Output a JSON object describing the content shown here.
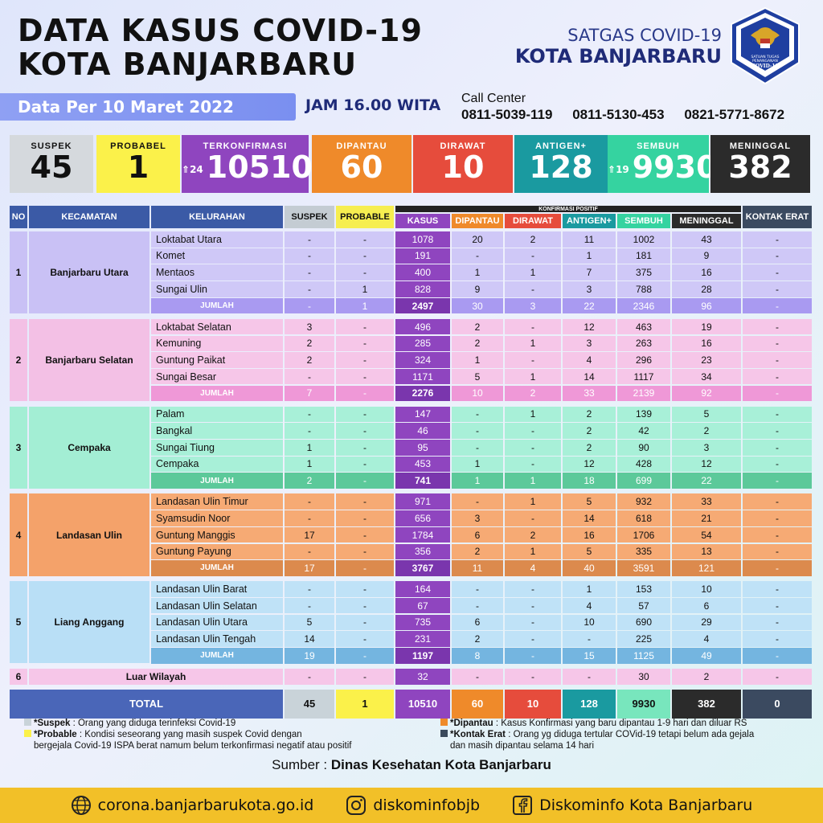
{
  "header": {
    "title_line1": "DATA KASUS COVID-19",
    "title_line2": "KOTA BANJARBARU",
    "satgas_line1": "SATGAS COVID-19",
    "satgas_line2": "KOTA BANJARBARU",
    "logo_text": "SATUAN TUGAS PENANGANAN COVID-19"
  },
  "date_label": "Data Per 10 Maret 2022",
  "time_label": "JAM 16.00 WITA",
  "call_center": {
    "label": "Call Center",
    "numbers": [
      "0811-5039-119",
      "0811-5130-453",
      "0821-5771-8672"
    ]
  },
  "summary": [
    {
      "label": "SUSPEK",
      "value": "45",
      "bg": "#d5d9dd",
      "fg": "#111111"
    },
    {
      "label": "PROBABEL",
      "value": "1",
      "bg": "#fbf14a",
      "fg": "#111111"
    },
    {
      "label": "TERKONFIRMASI",
      "value": "10510",
      "delta": "24",
      "bg": "#8f45bf",
      "fg": "#ffffff"
    },
    {
      "label": "DIPANTAU",
      "value": "60",
      "bg": "#ef8a2a",
      "fg": "#ffffff"
    },
    {
      "label": "DIRAWAT",
      "value": "10",
      "bg": "#e64c3c",
      "fg": "#ffffff"
    },
    {
      "label": "ANTIGEN+",
      "value": "128",
      "bg": "#1a9aa0",
      "fg": "#ffffff"
    },
    {
      "label": "SEMBUH",
      "value": "9930",
      "delta": "19",
      "bg": "#35d3a0",
      "fg": "#ffffff"
    },
    {
      "label": "MENINGGAL",
      "value": "382",
      "bg": "#2b2b2b",
      "fg": "#ffffff"
    }
  ],
  "table": {
    "headers": [
      "NO",
      "KECAMATAN",
      "KELURAHAN",
      "SUSPEK",
      "PROBABLE",
      "KASUS",
      "DIPANTAU",
      "DIRAWAT",
      "ANTIGEN+",
      "SEMBUH",
      "MENINGGAL",
      "KONTAK ERAT"
    ],
    "group_header": "KONFIRMASI POSITIF",
    "total_label": "JUMLAH",
    "districts": [
      {
        "no": "1",
        "name": "Banjarbaru Utara",
        "rows": [
          [
            "Loktabat Utara",
            "-",
            "-",
            "1078",
            "20",
            "2",
            "11",
            "1002",
            "43",
            "-"
          ],
          [
            "Komet",
            "-",
            "-",
            "191",
            "-",
            "-",
            "1",
            "181",
            "9",
            "-"
          ],
          [
            "Mentaos",
            "-",
            "-",
            "400",
            "1",
            "1",
            "7",
            "375",
            "16",
            "-"
          ],
          [
            "Sungai Ulin",
            "-",
            "1",
            "828",
            "9",
            "-",
            "3",
            "788",
            "28",
            "-"
          ]
        ],
        "total": [
          "-",
          "1",
          "2497",
          "30",
          "3",
          "22",
          "2346",
          "96",
          "-"
        ]
      },
      {
        "no": "2",
        "name": "Banjarbaru Selatan",
        "rows": [
          [
            "Loktabat Selatan",
            "3",
            "-",
            "496",
            "2",
            "-",
            "12",
            "463",
            "19",
            "-"
          ],
          [
            "Kemuning",
            "2",
            "-",
            "285",
            "2",
            "1",
            "3",
            "263",
            "16",
            "-"
          ],
          [
            "Guntung Paikat",
            "2",
            "-",
            "324",
            "1",
            "-",
            "4",
            "296",
            "23",
            "-"
          ],
          [
            "Sungai Besar",
            "-",
            "-",
            "1171",
            "5",
            "1",
            "14",
            "1117",
            "34",
            "-"
          ]
        ],
        "total": [
          "7",
          "-",
          "2276",
          "10",
          "2",
          "33",
          "2139",
          "92",
          "-"
        ]
      },
      {
        "no": "3",
        "name": "Cempaka",
        "rows": [
          [
            "Palam",
            "-",
            "-",
            "147",
            "-",
            "1",
            "2",
            "139",
            "5",
            "-"
          ],
          [
            "Bangkal",
            "-",
            "-",
            "46",
            "-",
            "-",
            "2",
            "42",
            "2",
            "-"
          ],
          [
            "Sungai Tiung",
            "1",
            "-",
            "95",
            "-",
            "-",
            "2",
            "90",
            "3",
            "-"
          ],
          [
            "Cempaka",
            "1",
            "-",
            "453",
            "1",
            "-",
            "12",
            "428",
            "12",
            "-"
          ]
        ],
        "total": [
          "2",
          "-",
          "741",
          "1",
          "1",
          "18",
          "699",
          "22",
          "-"
        ]
      },
      {
        "no": "4",
        "name": "Landasan Ulin",
        "rows": [
          [
            "Landasan Ulin Timur",
            "-",
            "-",
            "971",
            "-",
            "1",
            "5",
            "932",
            "33",
            "-"
          ],
          [
            "Syamsudin Noor",
            "-",
            "-",
            "656",
            "3",
            "-",
            "14",
            "618",
            "21",
            "-"
          ],
          [
            "Guntung Manggis",
            "17",
            "-",
            "1784",
            "6",
            "2",
            "16",
            "1706",
            "54",
            "-"
          ],
          [
            "Guntung Payung",
            "-",
            "-",
            "356",
            "2",
            "1",
            "5",
            "335",
            "13",
            "-"
          ]
        ],
        "total": [
          "17",
          "-",
          "3767",
          "11",
          "4",
          "40",
          "3591",
          "121",
          "-"
        ]
      },
      {
        "no": "5",
        "name": "Liang Anggang",
        "rows": [
          [
            "Landasan Ulin Barat",
            "-",
            "-",
            "164",
            "-",
            "-",
            "1",
            "153",
            "10",
            "-"
          ],
          [
            "Landasan Ulin Selatan",
            "-",
            "-",
            "67",
            "-",
            "-",
            "4",
            "57",
            "6",
            "-"
          ],
          [
            "Landasan Ulin Utara",
            "5",
            "-",
            "735",
            "6",
            "-",
            "10",
            "690",
            "29",
            "-"
          ],
          [
            "Landasan Ulin Tengah",
            "14",
            "-",
            "231",
            "2",
            "-",
            "-",
            "225",
            "4",
            "-"
          ]
        ],
        "total": [
          "19",
          "-",
          "1197",
          "8",
          "-",
          "15",
          "1125",
          "49",
          "-"
        ]
      }
    ],
    "luar": {
      "no": "6",
      "name": "Luar Wilayah",
      "values": [
        "-",
        "-",
        "32",
        "-",
        "-",
        "-",
        "30",
        "2",
        "-"
      ]
    },
    "grand_total": {
      "label": "TOTAL",
      "values": [
        "45",
        "1",
        "10510",
        "60",
        "10",
        "128",
        "9930",
        "382",
        "0"
      ]
    }
  },
  "legend": {
    "left": [
      {
        "term": "*Suspek",
        "text": " : Orang yang diduga terinfeksi Covid-19",
        "color": "#c9d3d9"
      },
      {
        "term": "*Probable",
        "text": " : Kondisi seseorang yang masih suspek Covid dengan",
        "color": "#fbf14a"
      }
    ],
    "left_cont": "bergejala Covid-19 ISPA berat namum belum terkonfirmasi negatif atau positif",
    "right": [
      {
        "term": "*Dipantau",
        "text": " : Kasus Konfirmasi yang baru dipantau 1-9 hari dan diluar RS",
        "color": "#ef8a2a"
      },
      {
        "term": "*Kontak Erat",
        "text": " : Orang yg diduga tertular COVid-19 tetapi belum ada gejala",
        "color": "#3a4a5c"
      }
    ],
    "right_cont": "dan masih dipantau selama 14 hari"
  },
  "source": {
    "label": "Sumber : ",
    "value": "Dinas Kesehatan Kota Banjarbaru"
  },
  "footer": {
    "website": "corona.banjarbarukota.go.id",
    "instagram": "diskominfobjb",
    "facebook": "Diskominfo Kota Banjarbaru"
  }
}
